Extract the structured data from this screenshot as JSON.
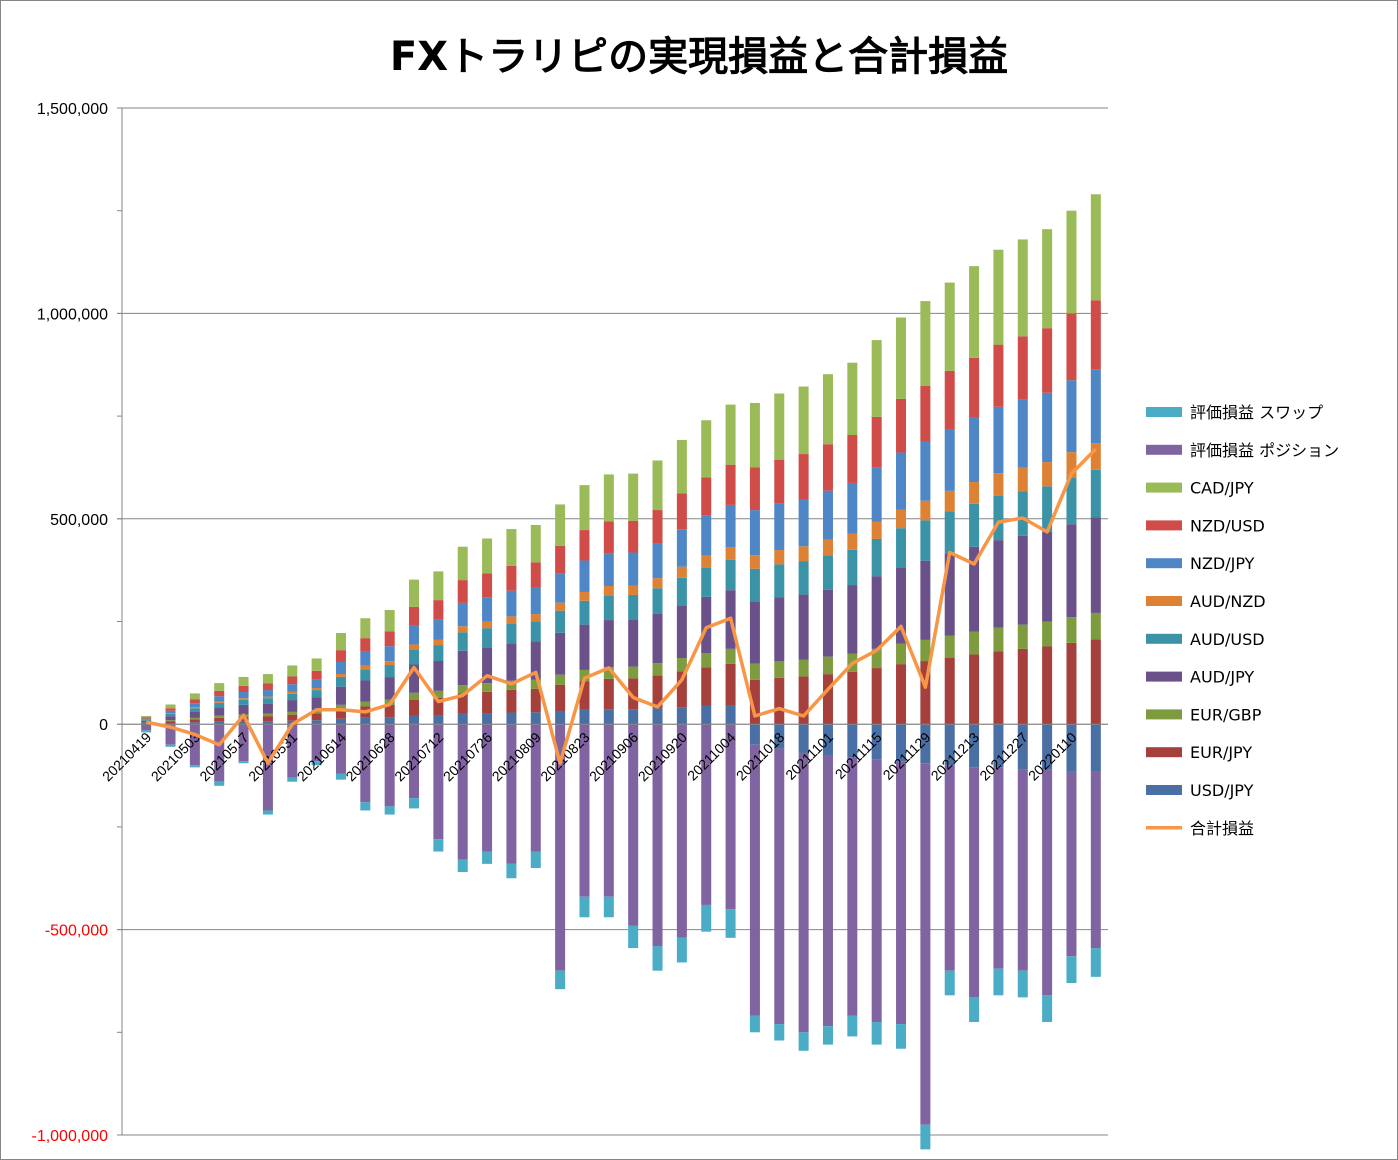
{
  "chart_data": {
    "type": "bar",
    "stacked": true,
    "title": "FXトラリピの実現損益と合計損益",
    "yticks": [
      "1,500,000",
      "1,000,000",
      "500,000",
      "0",
      "-500,000",
      "-1,000,000"
    ],
    "ylim": [
      -1000000,
      1500000
    ],
    "grid": true,
    "legend_position": "right",
    "x_tick_labels": [
      "20210419",
      "20210503",
      "20210517",
      "20210531",
      "20210614",
      "20210628",
      "20210712",
      "20210726",
      "20210809",
      "20210823",
      "20210906",
      "20210920",
      "20211004",
      "20211018",
      "20211101",
      "20211115",
      "20211129",
      "20211213",
      "20211227",
      "20220110"
    ],
    "colors": {
      "USD/JPY": "#4a6fa5",
      "EUR/JPY": "#a5403d",
      "EUR/GBP": "#7e9c3f",
      "AUD/JPY": "#6a5189",
      "AUD/USD": "#3b93a8",
      "AUD/NZD": "#dd8234",
      "NZD/JPY": "#4f86c6",
      "NZD/USD": "#cf4c49",
      "CAD/JPY": "#9bbb59",
      "評価損益 ポジション": "#8064a2",
      "評価損益 スワップ": "#4bacc6",
      "合計損益": "#f79646"
    },
    "legend": [
      "評価損益 スワップ",
      "評価損益 ポジション",
      "CAD/JPY",
      "NZD/USD",
      "NZD/JPY",
      "AUD/NZD",
      "AUD/USD",
      "AUD/JPY",
      "EUR/GBP",
      "EUR/JPY",
      "USD/JPY",
      "合計損益"
    ],
    "realized_total": [
      20000,
      48000,
      75000,
      100000,
      115000,
      122000,
      143000,
      160000,
      222000,
      258000,
      278000,
      352000,
      372000,
      432000,
      452000,
      475000,
      485000,
      535000,
      582000,
      608000,
      610000,
      642000,
      692000,
      740000,
      778000,
      782000,
      805000,
      822000,
      852000,
      880000,
      935000,
      990000,
      1030000,
      1075000,
      1115000,
      1155000,
      1180000,
      1205000,
      1250000,
      1290000
    ],
    "usd_jpy": [
      0,
      0,
      0,
      0,
      0,
      0,
      0,
      0,
      0,
      0,
      0,
      0,
      0,
      0,
      0,
      0,
      0,
      0,
      0,
      0,
      0,
      0,
      0,
      0,
      0,
      -50000,
      -60000,
      -70000,
      -75000,
      -80000,
      -85000,
      -90000,
      -95000,
      -100000,
      -105000,
      -105000,
      -110000,
      -110000,
      -115000,
      -115000
    ],
    "unrealized_position": [
      -15000,
      -50000,
      -100000,
      -140000,
      -90000,
      -210000,
      -130000,
      -90000,
      -120000,
      -190000,
      -200000,
      -180000,
      -280000,
      -330000,
      -310000,
      -340000,
      -310000,
      -600000,
      -420000,
      -420000,
      -490000,
      -540000,
      -520000,
      -440000,
      -450000,
      -660000,
      -670000,
      -680000,
      -660000,
      -630000,
      -640000,
      -640000,
      -880000,
      -500000,
      -560000,
      -490000,
      -490000,
      -550000,
      -450000,
      -430000
    ],
    "unrealized_swap": [
      -5000,
      -5000,
      -5000,
      -10000,
      -5000,
      -10000,
      -10000,
      -10000,
      -15000,
      -20000,
      -20000,
      -25000,
      -30000,
      -30000,
      -30000,
      -35000,
      -40000,
      -45000,
      -50000,
      -50000,
      -55000,
      -60000,
      -60000,
      -65000,
      -70000,
      -40000,
      -40000,
      -45000,
      -45000,
      -50000,
      -55000,
      -60000,
      -60000,
      -60000,
      -60000,
      -65000,
      -65000,
      -65000,
      -65000,
      -70000
    ],
    "total_pnl": [
      5000,
      -7000,
      -25000,
      -50000,
      22000,
      -95000,
      0,
      35000,
      35000,
      30000,
      48000,
      138000,
      55000,
      70000,
      118000,
      98000,
      126000,
      -95000,
      112000,
      137000,
      65000,
      42000,
      108000,
      235000,
      258000,
      20000,
      38000,
      20000,
      85000,
      148000,
      180000,
      238000,
      90000,
      418000,
      390000,
      492000,
      502000,
      468000,
      610000,
      670000
    ]
  }
}
